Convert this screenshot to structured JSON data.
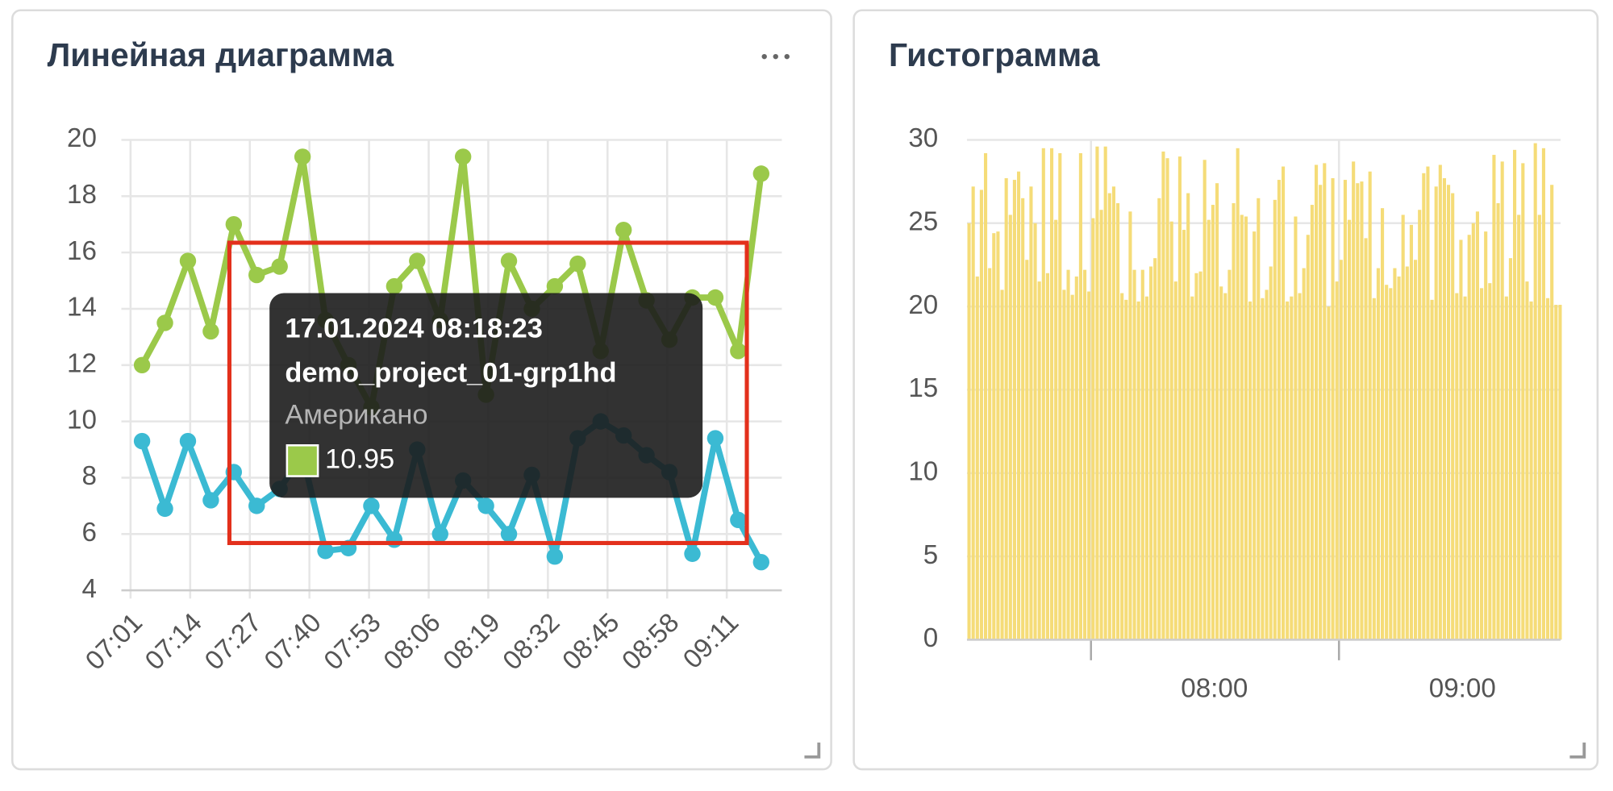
{
  "chart_data": [
    {
      "type": "line",
      "title": "Линейная диаграмма",
      "x": [
        423.5,
        428.5,
        433.5,
        438.5,
        443.5,
        448.5,
        453.5,
        458.5,
        463.5,
        468.5,
        473.5,
        478.5,
        483.5,
        488.5,
        493.5,
        498.5,
        503.5,
        508.5,
        513.5,
        518.5,
        523.5,
        528.5,
        533.5,
        538.5,
        543.5,
        548.5,
        553.5,
        558.5
      ],
      "series": [
        {
          "name": "Американо",
          "color": "#9bc94a",
          "values": [
            12.0,
            13.5,
            15.7,
            13.2,
            17.0,
            15.2,
            15.5,
            19.4,
            13.6,
            12.0,
            10.5,
            14.8,
            15.7,
            13.6,
            19.4,
            10.95,
            15.7,
            14.0,
            14.8,
            15.6,
            12.5,
            16.8,
            14.3,
            12.9,
            14.4,
            14.4,
            12.5,
            18.8
          ]
        },
        {
          "color": "#3bbad3",
          "values": [
            9.3,
            6.9,
            9.3,
            7.2,
            8.2,
            7.0,
            7.6,
            8.8,
            5.4,
            5.5,
            7.0,
            5.8,
            9.0,
            6.0,
            7.9,
            7.0,
            6.0,
            8.1,
            5.2,
            9.4,
            10.0,
            9.5,
            8.8,
            8.2,
            5.3,
            9.4,
            6.5,
            5.0
          ]
        }
      ],
      "xlim": [
        419,
        563
      ],
      "xticks": [
        {
          "value": 421,
          "label": "07:01"
        },
        {
          "value": 434,
          "label": "07:14"
        },
        {
          "value": 447,
          "label": "07:27"
        },
        {
          "value": 460,
          "label": "07:40"
        },
        {
          "value": 473,
          "label": "07:53"
        },
        {
          "value": 486,
          "label": "08:06"
        },
        {
          "value": 499,
          "label": "08:19"
        },
        {
          "value": 512,
          "label": "08:32"
        },
        {
          "value": 525,
          "label": "08:45"
        },
        {
          "value": 538,
          "label": "08:58"
        },
        {
          "value": 551,
          "label": "09:11"
        }
      ],
      "ylim": [
        4,
        20
      ],
      "yticks": [
        4,
        6,
        8,
        10,
        12,
        14,
        16,
        18,
        20
      ],
      "grid": true
    },
    {
      "type": "histogram",
      "title": "Гистограмма",
      "color": "#f5dc78",
      "bins": [
        450,
        451,
        452,
        453,
        454,
        455,
        456,
        457,
        458,
        459,
        460,
        461,
        462,
        463,
        464,
        465,
        466,
        467,
        468,
        469,
        470,
        471,
        472,
        473,
        474,
        475,
        476,
        477,
        478,
        479,
        480,
        481,
        482,
        483,
        484,
        485,
        486,
        487,
        488,
        489,
        490,
        491,
        492,
        493,
        494,
        495,
        496,
        497,
        498,
        499,
        500,
        501,
        502,
        503,
        504,
        505,
        506,
        507,
        508,
        509,
        510,
        511,
        512,
        513,
        514,
        515,
        516,
        517,
        518,
        519,
        520,
        521,
        522,
        523,
        524,
        525,
        526,
        527,
        528,
        529,
        530,
        531,
        532,
        533,
        534,
        535,
        536,
        537,
        538,
        539,
        540,
        541,
        542,
        543,
        544,
        545,
        546,
        547,
        548,
        549,
        550,
        551,
        552,
        553,
        554,
        555,
        556,
        557,
        558,
        559,
        560,
        561,
        562,
        563,
        564,
        565,
        566,
        567,
        568,
        569,
        570,
        571,
        572,
        573,
        574,
        575,
        576,
        577,
        578,
        579,
        580,
        581,
        582,
        583,
        584,
        585,
        586,
        587,
        588,
        589,
        590,
        591,
        592,
        593,
        594
      ],
      "values": [
        25,
        27.2,
        21.8,
        27,
        29.2,
        22.3,
        24.4,
        24.5,
        21,
        27.7,
        25.5,
        27.6,
        28.1,
        26.5,
        22.8,
        27.2,
        25,
        21.5,
        29.5,
        22,
        29.5,
        25.2,
        29.2,
        21,
        22.2,
        20.7,
        21.8,
        29.2,
        22.2,
        20.9,
        25.3,
        29.6,
        25.8,
        29.6,
        26.8,
        27.2,
        26.2,
        20.8,
        20.4,
        25.7,
        22.2,
        20.3,
        22.2,
        20.6,
        22.4,
        22.9,
        26.5,
        29.3,
        28.9,
        25.1,
        21.5,
        29,
        24.6,
        26.8,
        20.6,
        22,
        22.1,
        28.8,
        25.2,
        26.1,
        27.4,
        21.2,
        20.8,
        22.2,
        26.2,
        29.5,
        25.5,
        25.4,
        20.3,
        24.5,
        26.5,
        20.5,
        21,
        22.4,
        26.4,
        27.6,
        28.4,
        20.3,
        20.6,
        25.4,
        20.8,
        22.3,
        24.3,
        26.1,
        28.5,
        27.3,
        28.6,
        20,
        27.7,
        21.5,
        22.8,
        27.6,
        25.2,
        28.7,
        27.4,
        27.5,
        24.1,
        28.1,
        20.5,
        22.3,
        25.9,
        21.3,
        21.1,
        22.3,
        21.8,
        25.5,
        22.4,
        24.9,
        22.8,
        25.8,
        28,
        28.4,
        20.4,
        27.2,
        28.5,
        27.7,
        27.3,
        26.8,
        20.8,
        24,
        20.6,
        24.3,
        25,
        25.7,
        21.1,
        24.5,
        21.4,
        29.1,
        26.2,
        28.7,
        20.6,
        22.9,
        29.4,
        25.5,
        28.6,
        21.5,
        20.3,
        29.8,
        25.5,
        29.5,
        20.5,
        27.3,
        20.1,
        20.1
      ],
      "xlim": [
        450,
        593.6
      ],
      "xticks": [
        {
          "value": 480,
          "label": "08:00"
        },
        {
          "value": 540,
          "label": "09:00"
        }
      ],
      "ylim": [
        0,
        30
      ],
      "yticks": [
        0,
        5,
        10,
        15,
        20,
        25,
        30
      ],
      "grid": true
    }
  ],
  "tooltip": {
    "date": "17.01.2024 08:18:23",
    "project": "demo_project_01-grp1hd"
  }
}
